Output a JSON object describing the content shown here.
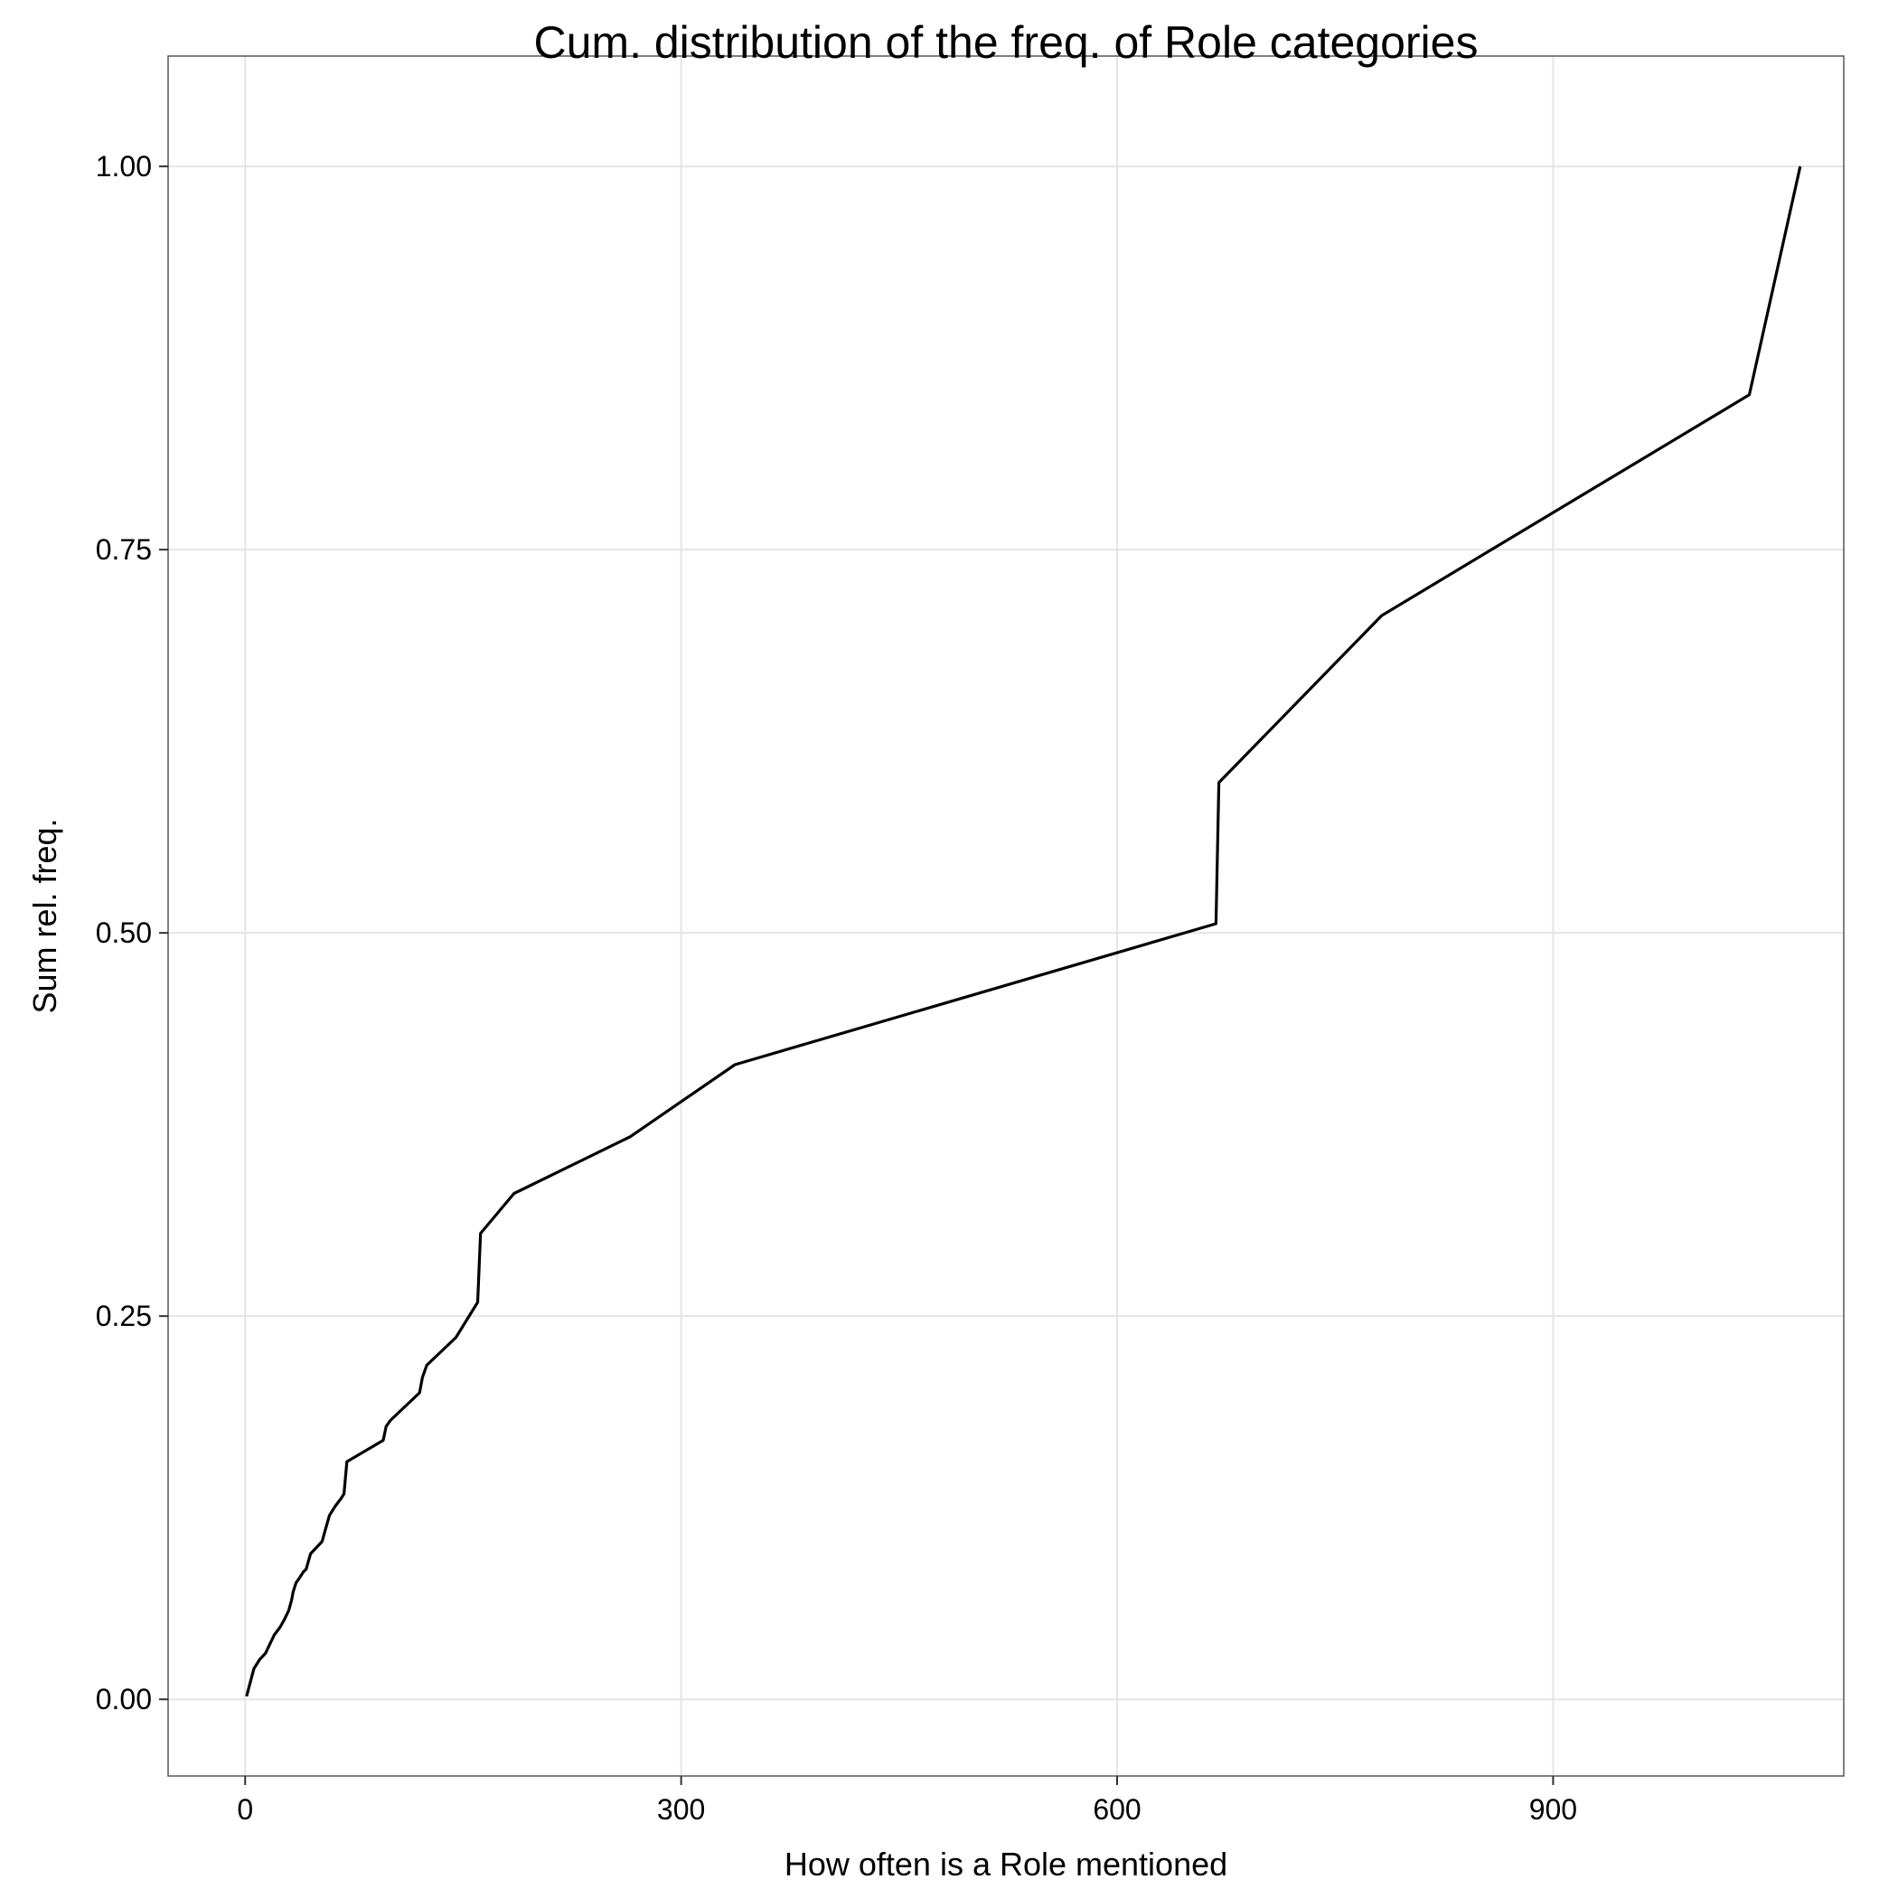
{
  "chart_data": {
    "type": "line",
    "title": "Cum. distribution of the freq. of Role categories",
    "xlabel": "How often is a Role mentioned",
    "ylabel": "Sum rel. freq.",
    "xlim": [
      -53,
      1100
    ],
    "ylim": [
      -0.05,
      1.072
    ],
    "x_ticks": [
      0,
      300,
      600,
      900
    ],
    "x_tick_labels": [
      "0",
      "300",
      "600",
      "900"
    ],
    "y_ticks": [
      0,
      0.25,
      0.5,
      0.75,
      1
    ],
    "y_tick_labels": [
      "0.00",
      "0.25",
      "0.50",
      "0.75",
      "1.00"
    ],
    "grid": true,
    "colors": {
      "line": "#000000",
      "grid": "#e5e5e5",
      "border": "#555555"
    },
    "series": [
      {
        "x": [
          1,
          6,
          10,
          14,
          17,
          20,
          24,
          27,
          30,
          32,
          33,
          35,
          38,
          40,
          42,
          45,
          50,
          53,
          55,
          58,
          62,
          66,
          68,
          70,
          95,
          97,
          100,
          120,
          122,
          125,
          145,
          160,
          162,
          185,
          265,
          337,
          668,
          670,
          782,
          1035,
          1070
        ],
        "y": [
          0.002,
          0.02,
          0.026,
          0.03,
          0.036,
          0.042,
          0.047,
          0.052,
          0.058,
          0.065,
          0.07,
          0.076,
          0.08,
          0.083,
          0.085,
          0.095,
          0.1,
          0.103,
          0.11,
          0.12,
          0.126,
          0.131,
          0.134,
          0.155,
          0.169,
          0.178,
          0.182,
          0.2,
          0.21,
          0.218,
          0.236,
          0.259,
          0.304,
          0.33,
          0.367,
          0.414,
          0.506,
          0.598,
          0.707,
          0.851,
          1.0
        ]
      }
    ]
  }
}
